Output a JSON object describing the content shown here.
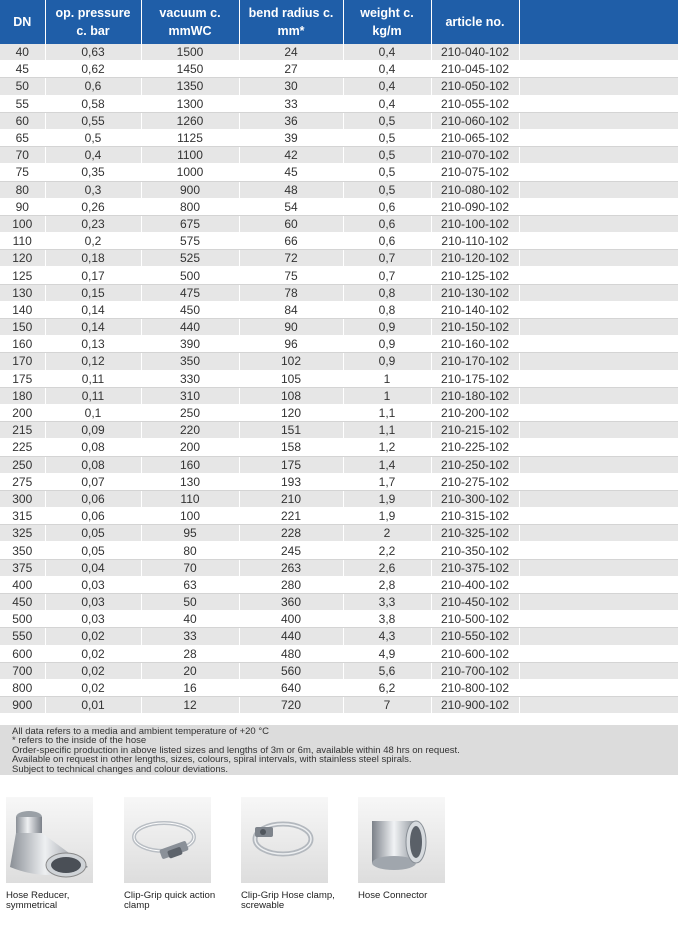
{
  "table": {
    "headers": [
      {
        "line1": "DN",
        "line2": ""
      },
      {
        "line1": "op. pressure",
        "line2": "c. bar"
      },
      {
        "line1": "vacuum c.",
        "line2": "mmWC"
      },
      {
        "line1": "bend radius c.",
        "line2": "mm*"
      },
      {
        "line1": "weight c.",
        "line2": "kg/m"
      },
      {
        "line1": "article no.",
        "line2": ""
      },
      {
        "line1": "",
        "line2": ""
      }
    ],
    "rows": [
      [
        "40",
        "0,63",
        "1500",
        "24",
        "0,4",
        "210-040-102"
      ],
      [
        "45",
        "0,62",
        "1450",
        "27",
        "0,4",
        "210-045-102"
      ],
      [
        "50",
        "0,6",
        "1350",
        "30",
        "0,4",
        "210-050-102"
      ],
      [
        "55",
        "0,58",
        "1300",
        "33",
        "0,4",
        "210-055-102"
      ],
      [
        "60",
        "0,55",
        "1260",
        "36",
        "0,5",
        "210-060-102"
      ],
      [
        "65",
        "0,5",
        "1125",
        "39",
        "0,5",
        "210-065-102"
      ],
      [
        "70",
        "0,4",
        "1100",
        "42",
        "0,5",
        "210-070-102"
      ],
      [
        "75",
        "0,35",
        "1000",
        "45",
        "0,5",
        "210-075-102"
      ],
      [
        "80",
        "0,3",
        "900",
        "48",
        "0,5",
        "210-080-102"
      ],
      [
        "90",
        "0,26",
        "800",
        "54",
        "0,6",
        "210-090-102"
      ],
      [
        "100",
        "0,23",
        "675",
        "60",
        "0,6",
        "210-100-102"
      ],
      [
        "110",
        "0,2",
        "575",
        "66",
        "0,6",
        "210-110-102"
      ],
      [
        "120",
        "0,18",
        "525",
        "72",
        "0,7",
        "210-120-102"
      ],
      [
        "125",
        "0,17",
        "500",
        "75",
        "0,7",
        "210-125-102"
      ],
      [
        "130",
        "0,15",
        "475",
        "78",
        "0,8",
        "210-130-102"
      ],
      [
        "140",
        "0,14",
        "450",
        "84",
        "0,8",
        "210-140-102"
      ],
      [
        "150",
        "0,14",
        "440",
        "90",
        "0,9",
        "210-150-102"
      ],
      [
        "160",
        "0,13",
        "390",
        "96",
        "0,9",
        "210-160-102"
      ],
      [
        "170",
        "0,12",
        "350",
        "102",
        "0,9",
        "210-170-102"
      ],
      [
        "175",
        "0,11",
        "330",
        "105",
        "1",
        "210-175-102"
      ],
      [
        "180",
        "0,11",
        "310",
        "108",
        "1",
        "210-180-102"
      ],
      [
        "200",
        "0,1",
        "250",
        "120",
        "1,1",
        "210-200-102"
      ],
      [
        "215",
        "0,09",
        "220",
        "151",
        "1,1",
        "210-215-102"
      ],
      [
        "225",
        "0,08",
        "200",
        "158",
        "1,2",
        "210-225-102"
      ],
      [
        "250",
        "0,08",
        "160",
        "175",
        "1,4",
        "210-250-102"
      ],
      [
        "275",
        "0,07",
        "130",
        "193",
        "1,7",
        "210-275-102"
      ],
      [
        "300",
        "0,06",
        "110",
        "210",
        "1,9",
        "210-300-102"
      ],
      [
        "315",
        "0,06",
        "100",
        "221",
        "1,9",
        "210-315-102"
      ],
      [
        "325",
        "0,05",
        "95",
        "228",
        "2",
        "210-325-102"
      ],
      [
        "350",
        "0,05",
        "80",
        "245",
        "2,2",
        "210-350-102"
      ],
      [
        "375",
        "0,04",
        "70",
        "263",
        "2,6",
        "210-375-102"
      ],
      [
        "400",
        "0,03",
        "63",
        "280",
        "2,8",
        "210-400-102"
      ],
      [
        "450",
        "0,03",
        "50",
        "360",
        "3,3",
        "210-450-102"
      ],
      [
        "500",
        "0,03",
        "40",
        "400",
        "3,8",
        "210-500-102"
      ],
      [
        "550",
        "0,02",
        "33",
        "440",
        "4,3",
        "210-550-102"
      ],
      [
        "600",
        "0,02",
        "28",
        "480",
        "4,9",
        "210-600-102"
      ],
      [
        "700",
        "0,02",
        "20",
        "560",
        "5,6",
        "210-700-102"
      ],
      [
        "800",
        "0,02",
        "16",
        "640",
        "6,2",
        "210-800-102"
      ],
      [
        "900",
        "0,01",
        "12",
        "720",
        "7",
        "210-900-102"
      ]
    ]
  },
  "notes": [
    "All data refers to a media and ambient temperature of +20 °C",
    "* refers to the inside of the hose",
    "Order-specific production in above listed sizes and lengths of 3m or 6m, available within 48 hrs on request.",
    "Available on request in other lengths, sizes, colours, spiral intervals, with stainless steel spirals.",
    "Subject to technical changes and colour deviations."
  ],
  "products": [
    {
      "name": "Hose Reducer, symmetrical",
      "icon": "hose-reducer-image"
    },
    {
      "name": "Clip-Grip quick action clamp",
      "icon": "clip-grip-quick-action-clamp-image"
    },
    {
      "name": "Clip-Grip Hose clamp, screwable",
      "icon": "clip-grip-hose-clamp-image"
    },
    {
      "name": "Hose Connector",
      "icon": "hose-connector-image"
    }
  ],
  "colors": {
    "header_bg": "#1f5ea8",
    "header_text": "#ffffff",
    "row_shade": "#e6e6e6",
    "notes_bg": "#dcdcdc"
  }
}
